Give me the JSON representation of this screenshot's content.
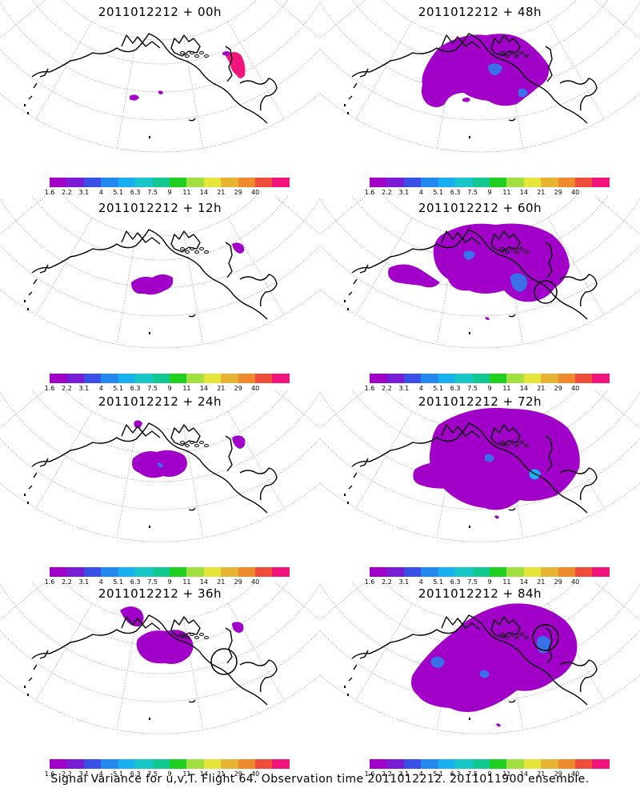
{
  "panels": [
    {
      "id": "00h",
      "title": "2011012212 + 00h"
    },
    {
      "id": "48h",
      "title": "2011012212 + 48h"
    },
    {
      "id": "12h",
      "title": "2011012212 + 12h"
    },
    {
      "id": "60h",
      "title": "2011012212 + 60h"
    },
    {
      "id": "24h",
      "title": "2011012212 + 24h"
    },
    {
      "id": "72h",
      "title": "2011012212 + 72h"
    },
    {
      "id": "36h",
      "title": "2011012212 + 36h"
    },
    {
      "id": "84h",
      "title": "2011012212 + 84h"
    }
  ],
  "colorbar": {
    "labels": [
      "1.6",
      "2.2",
      "3.1",
      "4",
      "5.1",
      "6.3",
      "7.5",
      "9",
      "11",
      "14",
      "21",
      "29",
      "40"
    ],
    "colors": [
      "#a000c8",
      "#7a1bd6",
      "#3a4fe6",
      "#2389ee",
      "#19b0f0",
      "#18c8c8",
      "#10c890",
      "#20d020",
      "#a0e040",
      "#e6e63a",
      "#e6b432",
      "#ee8a2c",
      "#f04c3c",
      "#f0147c"
    ]
  },
  "colors": {
    "shade_low": "#a000c8",
    "shade_mid": "#7a1bd6",
    "shade_blue": "#3a70e8",
    "shade_cyan": "#19b0f0",
    "shade_pink": "#f0147c"
  },
  "footer": "Signal Variance for u,v,T. Flight 64. Observation time 2011012212. 2011011900 ensemble."
}
